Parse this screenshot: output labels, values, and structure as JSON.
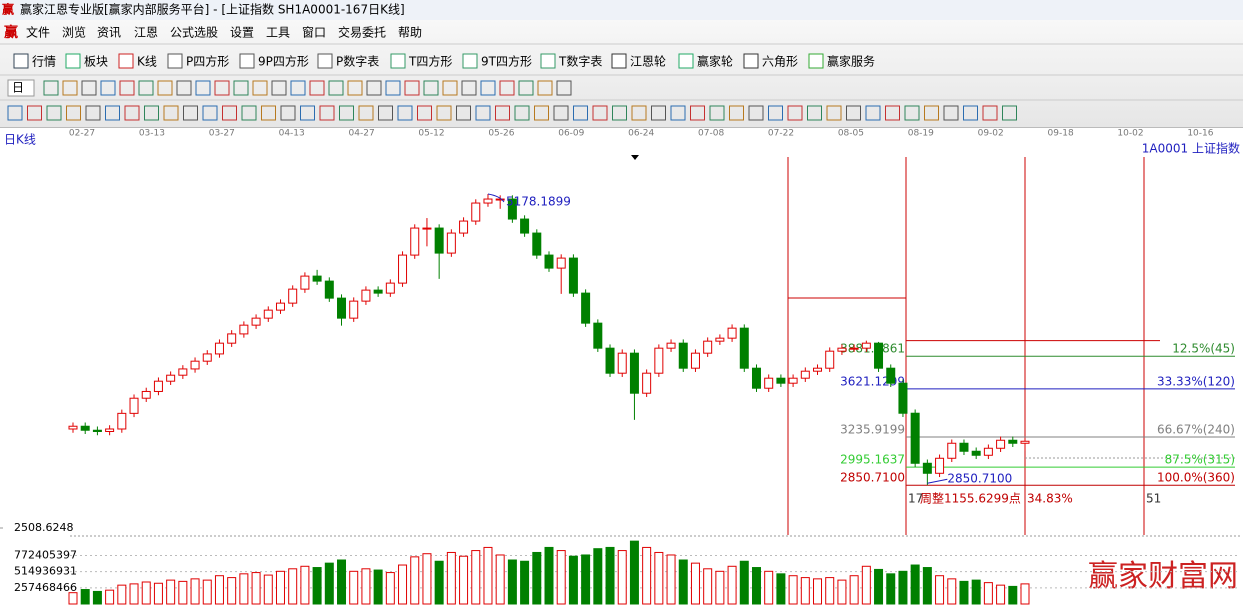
{
  "window": {
    "title": "赢家江恩专业版[赢家内部服务平台] - [上证指数  SH1A0001-167日K线]",
    "menu": [
      "文件",
      "浏览",
      "资讯",
      "江恩",
      "公式选股",
      "设置",
      "工具",
      "窗口",
      "交易委托",
      "帮助"
    ],
    "toolbar": [
      "行情",
      "板块",
      "K线",
      "P四方形",
      "9P四方形",
      "P数字表",
      "T四方形",
      "9T四方形",
      "T数字表",
      "江恩轮",
      "赢家轮",
      "六角形",
      "赢家服务"
    ],
    "period": "日",
    "watermark": "赢家财富网"
  },
  "chart_data": {
    "type": "candlestick",
    "title": "日K线",
    "symbol": "1A0001 上证指数",
    "date_labels": [
      "02-27",
      "03-13",
      "03-27",
      "04-13",
      "04-27",
      "05-12",
      "05-26",
      "06-09",
      "06-24",
      "07-08",
      "07-22",
      "08-05",
      "08-19",
      "09-02",
      "09-18",
      "10-02",
      "10-16"
    ],
    "open": [
      3300,
      3322,
      3290,
      3280,
      3300,
      3425,
      3546,
      3600,
      3682,
      3730,
      3780,
      3842,
      3900,
      3986,
      4060,
      4130,
      4186,
      4250,
      4306,
      4418,
      4522,
      4482,
      4346,
      4186,
      4322,
      4410,
      4386,
      4466,
      4690,
      4906,
      4906,
      4706,
      4866,
      4962,
      5106,
      5138,
      5138,
      4978,
      4866,
      4690,
      4586,
      4666,
      4386,
      4146,
      3946,
      3746,
      3906,
      3586,
      3746,
      3946,
      3986,
      3786,
      3906,
      4002,
      4026,
      4106,
      3786,
      3626,
      3706,
      3666,
      3706,
      3762,
      3786,
      3922,
      3946,
      3946,
      3986,
      3786,
      3666,
      3426,
      3026,
      2946,
      3066,
      3186,
      3122,
      3090,
      3146,
      3210,
      3186
    ],
    "high": [
      3352,
      3352,
      3320,
      3330,
      3455,
      3576,
      3630,
      3712,
      3760,
      3810,
      3872,
      3930,
      4016,
      4090,
      4160,
      4216,
      4280,
      4336,
      4448,
      4552,
      4572,
      4512,
      4376,
      4352,
      4440,
      4440,
      4496,
      4720,
      4936,
      4986,
      4936,
      4896,
      4992,
      5136,
      5178.1899,
      5168,
      5168,
      5008,
      4896,
      4720,
      4696,
      4696,
      4416,
      4176,
      3976,
      3936,
      3936,
      3776,
      3976,
      4016,
      4016,
      3936,
      4032,
      4056,
      4136,
      4136,
      3816,
      3736,
      3736,
      3736,
      3792,
      3816,
      3952,
      3976,
      3976,
      4006,
      3996,
      3816,
      3696,
      3456,
      3056,
      3096,
      3216,
      3216,
      3152,
      3176,
      3240,
      3240,
      3232
    ],
    "low": [
      3270,
      3260,
      3250,
      3250,
      3270,
      3395,
      3516,
      3570,
      3652,
      3700,
      3750,
      3812,
      3870,
      3956,
      4030,
      4100,
      4156,
      4220,
      4276,
      4388,
      4452,
      4316,
      4126,
      4156,
      4292,
      4356,
      4356,
      4436,
      4660,
      4760,
      4500,
      4676,
      4836,
      4932,
      5076,
      5060,
      4948,
      4836,
      4660,
      4556,
      4380,
      4356,
      4116,
      3916,
      3716,
      3716,
      3373,
      3556,
      3716,
      3916,
      3756,
      3756,
      3876,
      3972,
      3996,
      3756,
      3596,
      3596,
      3636,
      3636,
      3676,
      3732,
      3756,
      3892,
      3916,
      3916,
      3756,
      3636,
      3396,
      2996,
      2850.71,
      2916,
      3036,
      3092,
      3060,
      3060,
      3116,
      3156,
      3126
    ],
    "close": [
      3322,
      3290,
      3280,
      3300,
      3425,
      3546,
      3600,
      3682,
      3730,
      3780,
      3842,
      3900,
      3986,
      4060,
      4130,
      4186,
      4250,
      4306,
      4418,
      4522,
      4482,
      4346,
      4186,
      4322,
      4410,
      4386,
      4466,
      4690,
      4906,
      4906,
      4706,
      4866,
      4962,
      5106,
      5138,
      5138,
      4978,
      4866,
      4690,
      4586,
      4666,
      4386,
      4146,
      3946,
      3746,
      3906,
      3586,
      3746,
      3946,
      3986,
      3786,
      3906,
      4002,
      4026,
      4106,
      3786,
      3626,
      3706,
      3666,
      3706,
      3762,
      3786,
      3922,
      3946,
      3946,
      3986,
      3786,
      3666,
      3426,
      3026,
      2946,
      3066,
      3186,
      3122,
      3090,
      3146,
      3210,
      3186,
      3202
    ],
    "up_color": "#e00000",
    "down_color": "#008000",
    "ylim": [
      2508.6248,
      5546
    ],
    "yticks": [
      2508.6248
    ],
    "range_high": 4006,
    "levels": [
      {
        "value": 3881.8861,
        "label": "3881.8861",
        "ratio": "12.5%(45)",
        "color": "#2e8b2e"
      },
      {
        "value": 3621.1299,
        "label": "3621.1299",
        "ratio": "33.33%(120)",
        "color": "#1f1fbf"
      },
      {
        "value": 3235.9199,
        "label": "3235.9199",
        "ratio": "66.67%(240)",
        "color": "#808080"
      },
      {
        "value": 2995.1637,
        "label": "2995.1637",
        "ratio": "87.5%(315)",
        "color": "#33cc33"
      },
      {
        "value": 2850.71,
        "label": "2850.7100",
        "ratio": "100.0%(360)",
        "color": "#c00000"
      }
    ],
    "peak_label": "5178.1899",
    "low_label": "2850.7100",
    "cycle_notes": [
      "17",
      "周整1155.6299点",
      "34.83%",
      "51"
    ],
    "volume": {
      "values": [
        180000000,
        230000000,
        200000000,
        220000000,
        300000000,
        320000000,
        350000000,
        330000000,
        380000000,
        360000000,
        400000000,
        380000000,
        450000000,
        420000000,
        480000000,
        500000000,
        460000000,
        520000000,
        560000000,
        600000000,
        580000000,
        650000000,
        700000000,
        520000000,
        560000000,
        540000000,
        500000000,
        620000000,
        750000000,
        800000000,
        680000000,
        820000000,
        760000000,
        850000000,
        900000000,
        780000000,
        700000000,
        680000000,
        820000000,
        900000000,
        850000000,
        760000000,
        780000000,
        880000000,
        900000000,
        850000000,
        1000000000,
        900000000,
        820000000,
        780000000,
        700000000,
        650000000,
        560000000,
        520000000,
        600000000,
        680000000,
        580000000,
        520000000,
        480000000,
        450000000,
        420000000,
        400000000,
        420000000,
        380000000,
        450000000,
        600000000,
        550000000,
        480000000,
        520000000,
        620000000,
        580000000,
        450000000,
        400000000,
        360000000,
        380000000,
        340000000,
        300000000,
        280000000,
        320000000
      ],
      "ylim": [
        0,
        1050000000
      ],
      "yticks": [
        257468466,
        514936931,
        772405397
      ]
    }
  }
}
